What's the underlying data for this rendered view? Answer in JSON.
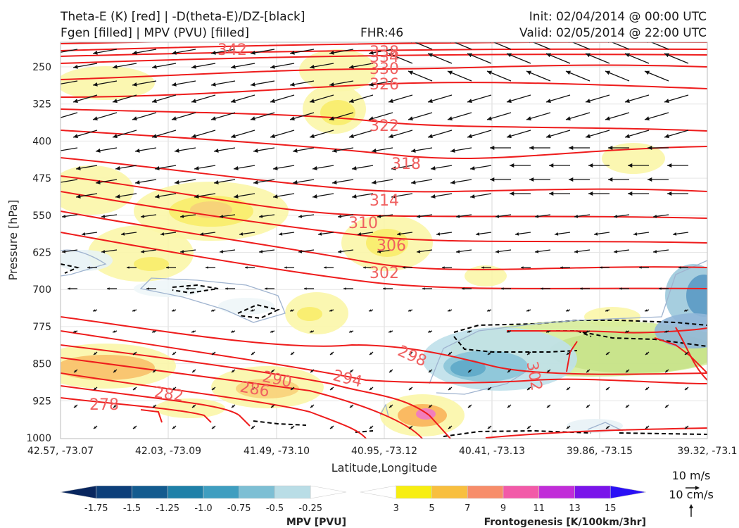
{
  "header": {
    "title_line1": "Theta-E (K) [red] | -D(theta-E)/DZ-[black]",
    "title_line2": "Fgen [filled] | MPV (PVU) [filled]",
    "fhr": "FHR:46",
    "init": "Init: 02/04/2014 @ 00:00 UTC",
    "valid": "Valid: 02/05/2014 @ 22:00 UTC"
  },
  "colors": {
    "theta_e": "#ee1c1c",
    "theta_e_label": "#f06060",
    "neg_ddz": "#000000",
    "vectors": "#111111",
    "frame": "#bbbbbb"
  },
  "chart_data": {
    "type": "cross-section",
    "xlabel": "Latitude,Longitude",
    "ylabel": "Pressure [hPa]",
    "ylim": [
      1000,
      200
    ],
    "x_ticks": [
      "42.57, -73.07",
      "42.03, -73.09",
      "41.49, -73.10",
      "40.95, -73.12",
      "40.41, -73.13",
      "39.86, -73.15",
      "39.32, -73.1"
    ],
    "y_ticks": [
      250,
      325,
      400,
      475,
      550,
      625,
      700,
      775,
      850,
      925,
      1000
    ],
    "grid": true,
    "theta_e_contour_labels": [
      342,
      338,
      334,
      330,
      326,
      322,
      318,
      314,
      310,
      306,
      302,
      298,
      294,
      290,
      286,
      282,
      278,
      302
    ],
    "mpv_colorbar": {
      "label": "MPV [PVU]",
      "ticks": [
        "-1.75",
        "-1.5",
        "-1.25",
        "-1.0",
        "-0.75",
        "-0.5",
        "-0.25"
      ],
      "colors": [
        "#08265e",
        "#0d3f7a",
        "#135b8f",
        "#1f80a8",
        "#3f9ec0",
        "#7dbfd4",
        "#b9dde6",
        "#ffffff"
      ]
    },
    "fgen_colorbar": {
      "label": "Frontogenesis [K/100km/3hr]",
      "ticks": [
        "3",
        "5",
        "7",
        "9",
        "11",
        "13",
        "15"
      ],
      "colors": [
        "#ffffff",
        "#f7ee11",
        "#f8bf3f",
        "#f78d6a",
        "#f25aa8",
        "#c12dd8",
        "#7a14ea",
        "#2a10f5"
      ]
    },
    "vector_key": {
      "horizontal": "10 m/s",
      "vertical": "10 cm/s"
    }
  }
}
